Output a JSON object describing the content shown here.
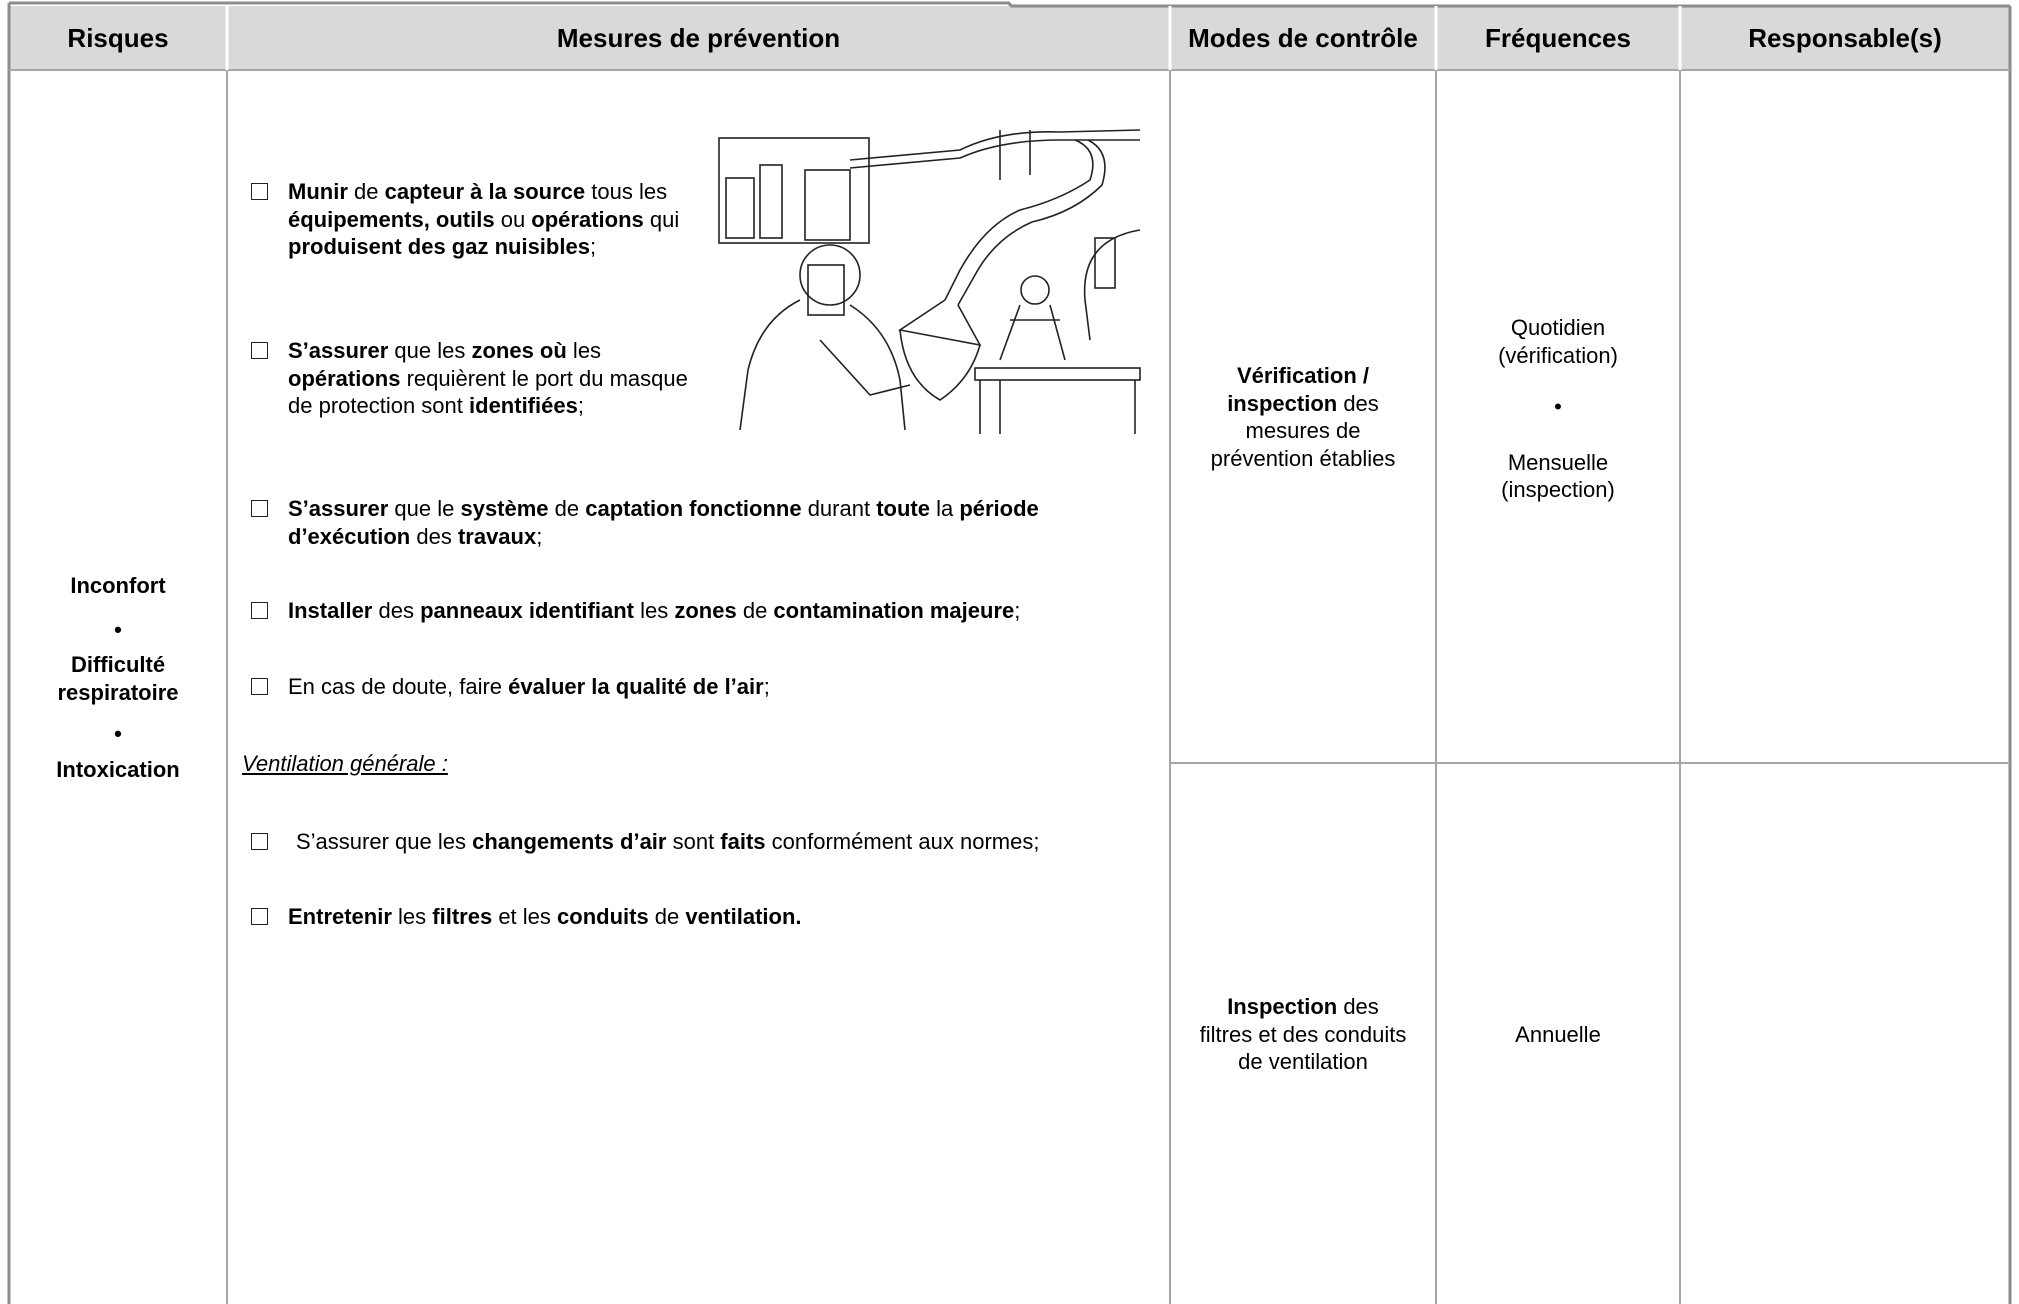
{
  "table": {
    "headers": [
      "Risques",
      "Mesures de prévention",
      "Modes de contrôle",
      "Fréquences",
      "Responsable(s)"
    ],
    "risques": [
      "Inconfort",
      "Difficulté respiratoire",
      "Intoxication"
    ],
    "mesures": [
      [
        {
          "t": "Munir",
          "b": true
        },
        {
          "t": " de "
        },
        {
          "t": "capteur à la source",
          "b": true
        },
        {
          "t": " tous les "
        },
        {
          "t": "équipements, outils",
          "b": true
        },
        {
          "t": " ou "
        },
        {
          "t": "opérations",
          "b": true
        },
        {
          "t": " qui "
        },
        {
          "t": "produisent des gaz nuisibles",
          "b": true
        },
        {
          "t": ";"
        }
      ],
      [
        {
          "t": "S’assurer",
          "b": true
        },
        {
          "t": " que les "
        },
        {
          "t": "zones où",
          "b": true
        },
        {
          "t": " les "
        },
        {
          "t": "opérations",
          "b": true
        },
        {
          "t": " requièrent le port du masque de protection sont "
        },
        {
          "t": "identifiées",
          "b": true
        },
        {
          "t": ";"
        }
      ],
      [
        {
          "t": "S’assurer",
          "b": true
        },
        {
          "t": " que le "
        },
        {
          "t": "système",
          "b": true
        },
        {
          "t": " de "
        },
        {
          "t": "captation fonctionne",
          "b": true
        },
        {
          "t": " durant "
        },
        {
          "t": "toute",
          "b": true
        },
        {
          "t": " la "
        },
        {
          "t": "période d’exécution",
          "b": true
        },
        {
          "t": " des "
        },
        {
          "t": "travaux",
          "b": true
        },
        {
          "t": ";"
        }
      ],
      [
        {
          "t": "Installer",
          "b": true
        },
        {
          "t": " des "
        },
        {
          "t": "panneaux identifiant",
          "b": true
        },
        {
          "t": " les "
        },
        {
          "t": "zones",
          "b": true
        },
        {
          "t": " de "
        },
        {
          "t": "contamination majeure",
          "b": true
        },
        {
          "t": ";"
        }
      ],
      [
        {
          "t": "En cas de doute, faire "
        },
        {
          "t": "évaluer la qualité de l’air",
          "b": true
        },
        {
          "t": ";"
        }
      ]
    ],
    "ventilation_heading": "Ventilation générale :",
    "ventilation_items": [
      [
        {
          "t": "S’assurer que les "
        },
        {
          "t": "changements d’air",
          "b": true
        },
        {
          "t": " sont "
        },
        {
          "t": "faits",
          "b": true
        },
        {
          "t": " conformément aux normes;"
        }
      ],
      [
        {
          "t": "Entretenir",
          "b": true
        },
        {
          "t": " les "
        },
        {
          "t": "filtres",
          "b": true
        },
        {
          "t": " et les "
        },
        {
          "t": "conduits",
          "b": true
        },
        {
          "t": " de "
        },
        {
          "t": "ventilation.",
          "b": true
        }
      ]
    ],
    "controles": [
      [
        {
          "t": "Vérification / inspection",
          "b": true
        },
        {
          "t": " des mesures de prévention établies"
        }
      ],
      [
        {
          "t": "Inspection",
          "b": true
        },
        {
          "t": " des filtres et des conduits de ventilation"
        }
      ]
    ],
    "frequences": [
      [
        [
          "Quotidien",
          "(vérification)"
        ],
        [
          "Mensuelle",
          "(inspection)"
        ]
      ],
      [
        [
          "Annuelle"
        ]
      ]
    ]
  }
}
